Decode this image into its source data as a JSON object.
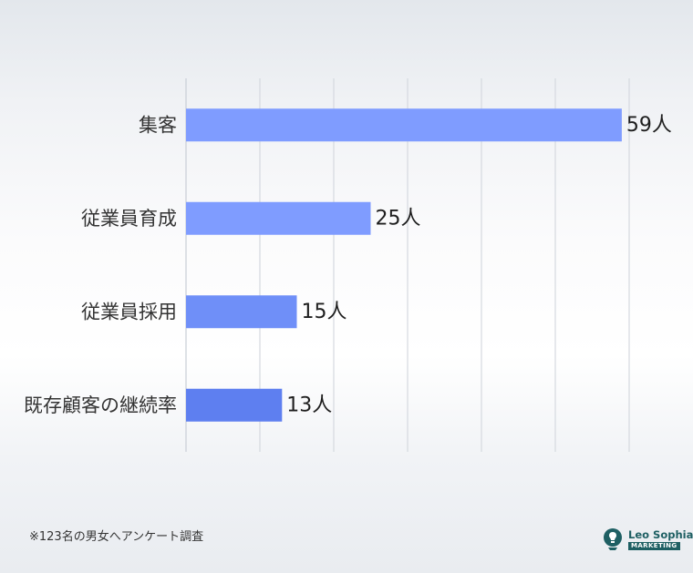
{
  "chart_data": {
    "type": "bar",
    "orientation": "horizontal",
    "categories": [
      "集客",
      "従業員育成",
      "従業員採用",
      "既存顧客の継続率"
    ],
    "values": [
      59,
      25,
      15,
      13
    ],
    "value_labels": [
      "59人",
      "25人",
      "15人",
      "13人"
    ],
    "xlim": [
      0,
      60
    ],
    "grid": true,
    "colors": [
      "#7f9cff",
      "#7f9cff",
      "#6f8ff8",
      "#5e7ff0"
    ]
  },
  "footnote": "※123名の男女へアンケート調査",
  "logo": {
    "name": "Leo Sophia",
    "tag": "MARKETING",
    "icon": "lightbulb-head-icon",
    "color": "#1e5f63"
  }
}
